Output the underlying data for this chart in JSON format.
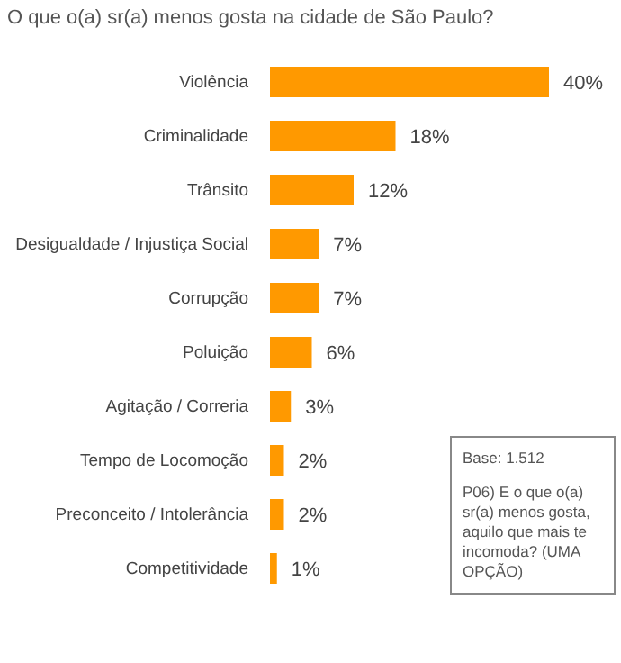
{
  "chart_data": {
    "type": "bar",
    "orientation": "horizontal",
    "title": "O que o(a) sr(a) menos gosta na cidade de São Paulo?",
    "categories": [
      "Violência",
      "Criminalidade",
      "Trânsito",
      "Desigualdade /  Injustiça Social",
      "Corrupção",
      "Poluição",
      "Agitação / Correria",
      "Tempo de Locomoção",
      "Preconceito / Intolerância",
      "Competitividade"
    ],
    "values": [
      40,
      18,
      12,
      7,
      7,
      6,
      3,
      2,
      2,
      1
    ],
    "value_labels": [
      "40%",
      "18%",
      "12%",
      "7%",
      "7%",
      "6%",
      "3%",
      "2%",
      "2%",
      "1%"
    ],
    "color": "#ff9900",
    "annotations": [
      "Base: 1.512",
      "P06) E o que o(a) sr(a) menos gosta, aquilo que mais te incomoda? (UMA OPÇÃO)"
    ]
  }
}
